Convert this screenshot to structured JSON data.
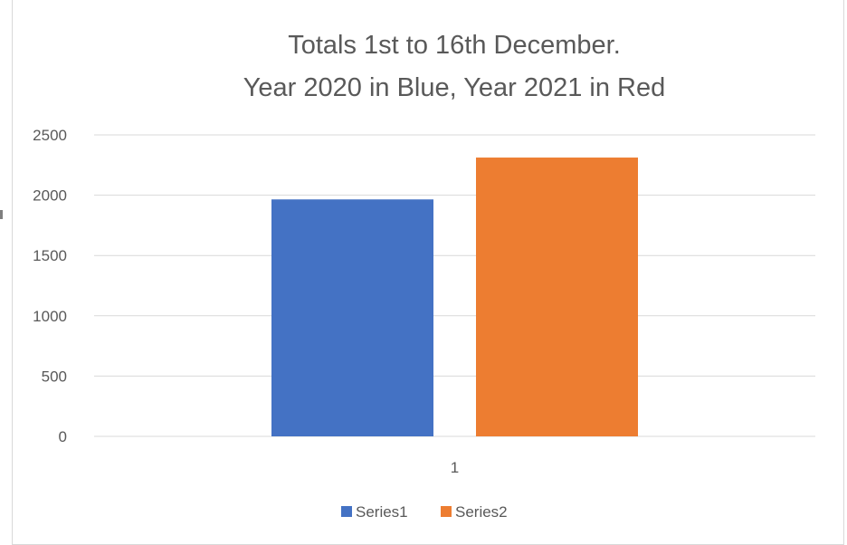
{
  "chart_data": {
    "type": "bar",
    "title_lines": [
      "Totals 1st to 16th December.",
      "Year 2020 in Blue, Year 2021 in Red"
    ],
    "categories": [
      "1"
    ],
    "series": [
      {
        "name": "Series1",
        "values": [
          1965
        ],
        "color": "#4472C4"
      },
      {
        "name": "Series2",
        "values": [
          2312
        ],
        "color": "#ED7D31"
      }
    ],
    "ylim": [
      0,
      2500
    ],
    "yticks": [
      0,
      500,
      1000,
      1500,
      2000,
      2500
    ],
    "xlabel": "",
    "ylabel": "",
    "grid": true,
    "legend_position": "bottom"
  }
}
